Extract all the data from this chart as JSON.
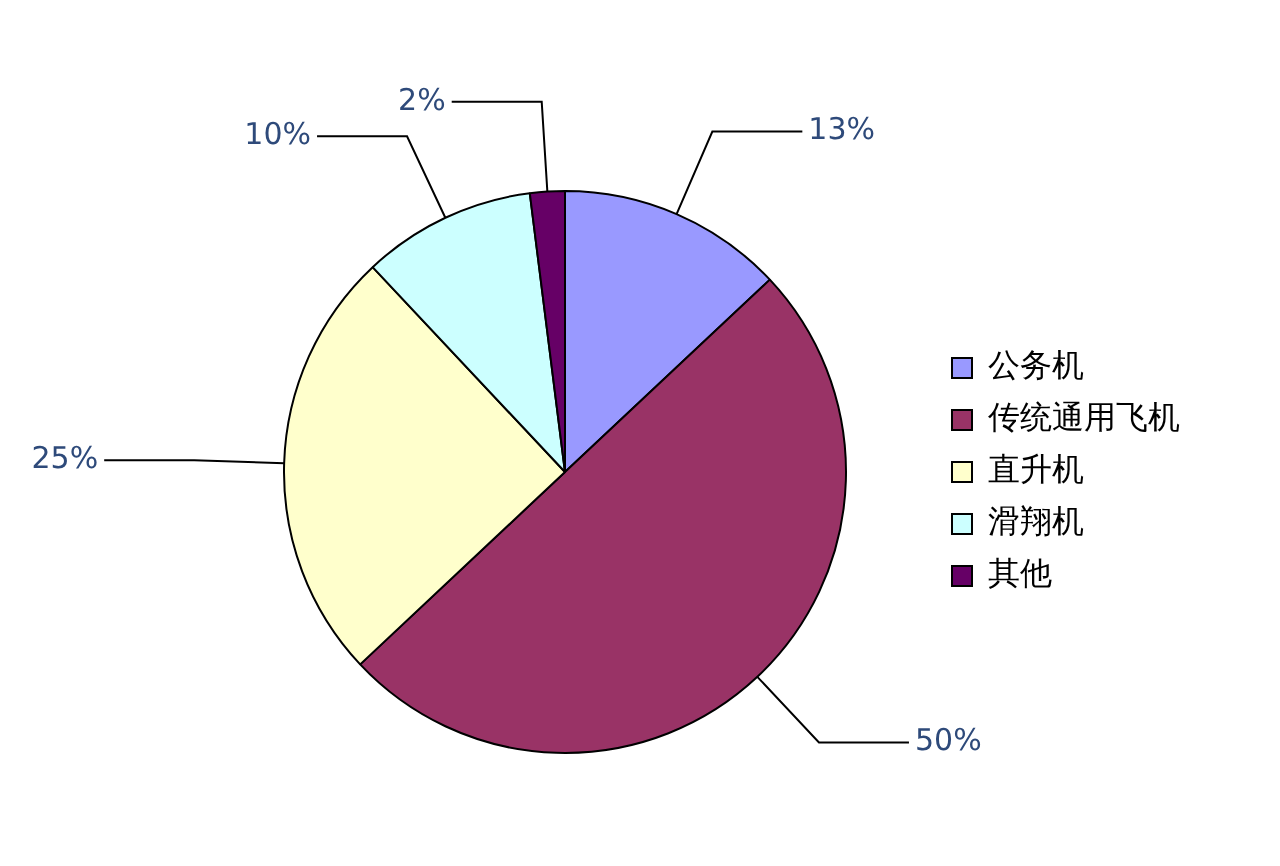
{
  "chart_data": {
    "type": "pie",
    "categories": [
      "公务机",
      "传统通用飞机",
      "直升机",
      "滑翔机",
      "其他"
    ],
    "values": [
      13,
      50,
      25,
      10,
      2
    ],
    "value_labels": [
      "13%",
      "50%",
      "25%",
      "10%",
      "2%"
    ],
    "colors": [
      "#9999ff",
      "#993366",
      "#ffffcc",
      "#ccffff",
      "#660066"
    ],
    "legend": "right"
  }
}
